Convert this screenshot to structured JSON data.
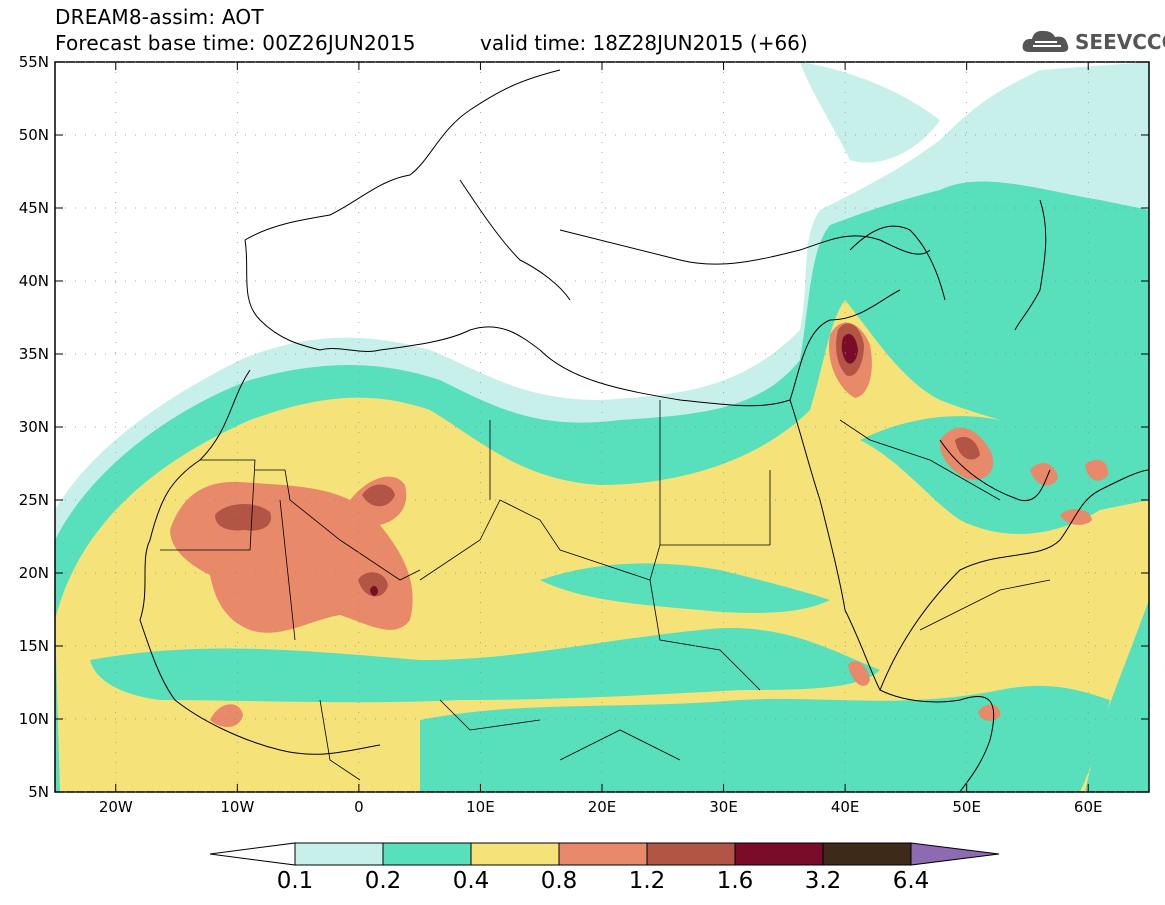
{
  "header": {
    "title": "DREAM8-assim: AOT",
    "base_time": "Forecast base time: 00Z26JUN2015",
    "valid_time": "valid time: 18Z28JUN2015 (+66)",
    "logo_text": "SEEVCCC",
    "logo_icon": "cloud-icon"
  },
  "map": {
    "lat_labels": [
      "55N",
      "50N",
      "45N",
      "40N",
      "35N",
      "30N",
      "25N",
      "20N",
      "15N",
      "10N",
      "5N"
    ],
    "lon_labels": [
      "20W",
      "10W",
      "0",
      "10E",
      "20E",
      "30E",
      "40E",
      "50E",
      "60E"
    ],
    "lat_range": [
      5,
      55
    ],
    "lon_range": [
      -25,
      65
    ],
    "variable": "AOT"
  },
  "colorbar": {
    "ticks": [
      "0.1",
      "0.2",
      "0.4",
      "0.8",
      "1.2",
      "1.6",
      "3.2",
      "6.4"
    ],
    "colors": [
      "#c8f0ea",
      "#58dfbb",
      "#f5e37a",
      "#e8896a",
      "#b25545",
      "#7a0c28",
      "#3d2a18",
      "#8e6ab3"
    ],
    "under_color": "#ffffff"
  }
}
